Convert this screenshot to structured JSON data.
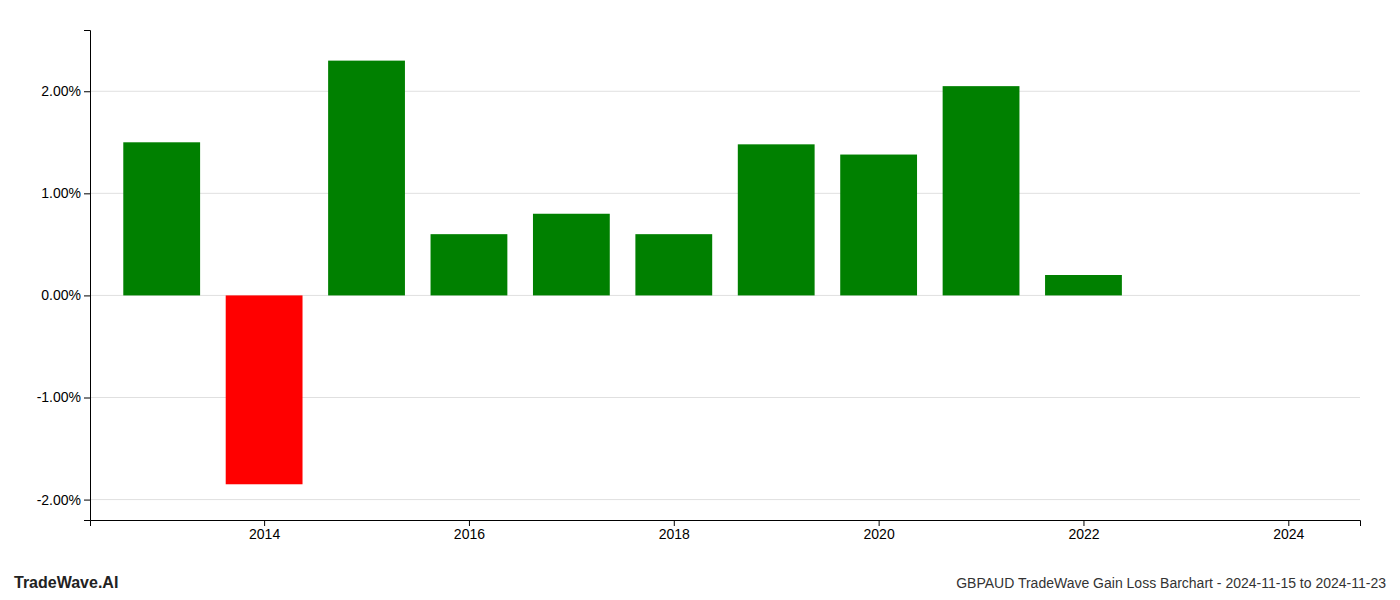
{
  "chart_data": {
    "type": "bar",
    "title": "GBPAUD TradeWave Gain Loss Barchart - 2024-11-15 to 2024-11-23",
    "annotations": [
      "TradeWave.AI"
    ],
    "x": [
      2013,
      2014,
      2015,
      2016,
      2017,
      2018,
      2019,
      2020,
      2021,
      2022,
      2023
    ],
    "values": [
      1.5,
      -1.85,
      2.3,
      0.6,
      0.8,
      0.6,
      1.48,
      1.38,
      2.05,
      0.2,
      0.0
    ],
    "colors": [
      "#008000",
      "#ff0000",
      "#008000",
      "#008000",
      "#008000",
      "#008000",
      "#008000",
      "#008000",
      "#008000",
      "#008000",
      "#008000"
    ],
    "xlim": [
      2012.3,
      2024.7
    ],
    "xticks": [
      2014,
      2016,
      2018,
      2020,
      2022,
      2024
    ],
    "ylim": [
      -2.2,
      2.6
    ],
    "yticks": [
      {
        "value": -2.0,
        "label": "-2.00%"
      },
      {
        "value": -1.0,
        "label": "-1.00%"
      },
      {
        "value": 0.0,
        "label": "0.00%"
      },
      {
        "value": 1.0,
        "label": "1.00%"
      },
      {
        "value": 2.0,
        "label": "2.00%"
      }
    ],
    "grid": true
  }
}
